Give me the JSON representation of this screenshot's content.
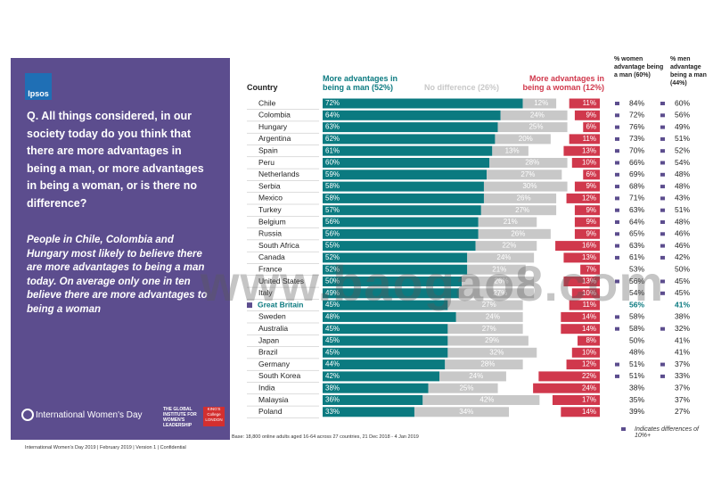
{
  "brand": "Ipsos",
  "question": "Q. All things considered, in our society today do you think that there are more advantages in being a man, or more advantages in being a woman, or is there no difference?",
  "summary": "People in Chile, Colombia and Hungary most likely to believe there are more advantages to being a man today. On average only one in ten believe there are more advantages to being a woman",
  "footer_logos": [
    "International Women's Day",
    "THE GLOBAL INSTITUTE FOR WOMEN'S LEADERSHIP",
    "KING'S College LONDON"
  ],
  "base_note": "Base: 18,800 online adults aged 16-64 across 27 countries, 21 Dec 2018 - 4 Jan 2019",
  "footer": "International Women's Day 2019 | February 2019 | Version 1 | Confidential",
  "marker_note": "Indicates differences of 10%+",
  "watermark": "www.baogao8.com",
  "chart_data": {
    "type": "stacked-bar",
    "category_header": "Country",
    "categories": [
      "Chile",
      "Colombia",
      "Hungary",
      "Argentina",
      "Spain",
      "Peru",
      "Netherlands",
      "Serbia",
      "Mexico",
      "Turkey",
      "Belgium",
      "Russia",
      "South Africa",
      "Canada",
      "France",
      "United States",
      "Italy",
      "Great Britain",
      "Sweden",
      "Australia",
      "Japan",
      "Brazil",
      "Germany",
      "South Korea",
      "India",
      "Malaysia",
      "Poland"
    ],
    "highlight_index": 17,
    "series": [
      {
        "name": "More advantages in being a man (52%)",
        "color": "#0b7a80",
        "values": [
          72,
          64,
          63,
          62,
          61,
          60,
          59,
          58,
          58,
          57,
          56,
          56,
          55,
          52,
          52,
          50,
          49,
          45,
          48,
          45,
          45,
          45,
          44,
          42,
          38,
          36,
          33
        ],
        "value_labels": [
          "72%",
          "64%",
          "63%",
          "62%",
          "61%",
          "60%",
          "59%",
          "58%",
          "58%",
          "57%",
          "56%",
          "56%",
          "55%",
          "52%",
          "52%",
          "50%",
          "49%",
          "45%",
          "48%",
          "45%",
          "45%",
          "45%",
          "44%",
          "42%",
          "38%",
          "36%",
          "33%"
        ]
      },
      {
        "name": "No difference (26%)",
        "color": "#c8c8c8",
        "values": [
          12,
          24,
          25,
          20,
          13,
          28,
          27,
          30,
          26,
          27,
          21,
          26,
          22,
          24,
          21,
          26,
          27,
          27,
          24,
          27,
          29,
          32,
          28,
          24,
          25,
          42,
          34
        ],
        "value_labels": [
          "12%",
          "24%",
          "25%",
          "20%",
          "13%",
          "28%",
          "27%",
          "30%",
          "26%",
          "27%",
          "21%",
          "26%",
          "22%",
          "24%",
          "21%",
          "26%",
          "27%",
          "27%",
          "24%",
          "27%",
          "29%",
          "32%",
          "28%",
          "24%",
          "25%",
          "42%",
          "34%"
        ]
      },
      {
        "name": "More advantages in being a woman (12%)",
        "color": "#d0384c",
        "values": [
          11,
          9,
          6,
          11,
          13,
          10,
          6,
          9,
          12,
          9,
          9,
          9,
          16,
          13,
          7,
          13,
          10,
          11,
          14,
          14,
          8,
          10,
          12,
          22,
          24,
          17,
          14
        ],
        "value_labels": [
          "11%",
          "9%",
          "6%",
          "11%",
          "13%",
          "10%",
          "6%",
          "9%",
          "12%",
          "9%",
          "9%",
          "9%",
          "16%",
          "13%",
          "7%",
          "13%",
          "10%",
          "11%",
          "14%",
          "14%",
          "8%",
          "10%",
          "12%",
          "22%",
          "24%",
          "17%",
          "14%"
        ]
      }
    ],
    "columns": [
      {
        "header": "% women advantage being a man (60%)",
        "cells": [
          "84%",
          "72%",
          "76%",
          "73%",
          "70%",
          "66%",
          "69%",
          "68%",
          "71%",
          "63%",
          "64%",
          "65%",
          "63%",
          "61%",
          "53%",
          "56%",
          "54%",
          "56%",
          "58%",
          "58%",
          "50%",
          "48%",
          "51%",
          "51%",
          "38%",
          "35%",
          "39%"
        ],
        "marked": [
          true,
          true,
          true,
          true,
          true,
          true,
          true,
          true,
          true,
          true,
          true,
          true,
          true,
          true,
          false,
          true,
          false,
          false,
          true,
          true,
          false,
          false,
          true,
          true,
          false,
          false,
          false
        ]
      },
      {
        "header": "% men advantage being a man (44%)",
        "cells": [
          "60%",
          "56%",
          "49%",
          "51%",
          "52%",
          "54%",
          "48%",
          "48%",
          "43%",
          "51%",
          "48%",
          "46%",
          "46%",
          "42%",
          "50%",
          "45%",
          "45%",
          "41%",
          "38%",
          "32%",
          "41%",
          "41%",
          "37%",
          "33%",
          "37%",
          "37%",
          "27%"
        ],
        "marked": [
          true,
          true,
          true,
          true,
          true,
          true,
          true,
          true,
          true,
          true,
          true,
          true,
          true,
          true,
          false,
          true,
          true,
          false,
          false,
          true,
          false,
          false,
          true,
          true,
          false,
          false,
          false
        ]
      }
    ],
    "marker_color": "#5c4d8e"
  }
}
